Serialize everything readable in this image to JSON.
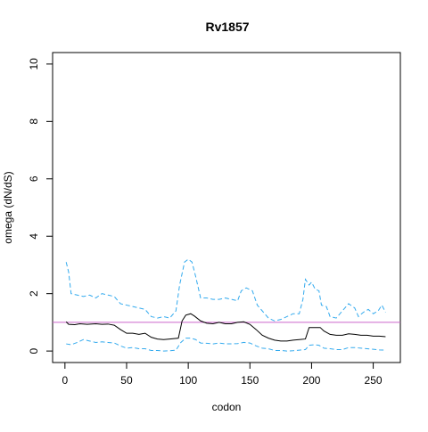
{
  "chart_data": {
    "type": "line",
    "title": "Rv1857",
    "xlabel": "codon",
    "ylabel": "omega (dN/dS)",
    "xlim": [
      -10,
      272
    ],
    "ylim": [
      -0.4,
      10.4
    ],
    "x_ticks": [
      0,
      50,
      100,
      150,
      200,
      250
    ],
    "y_ticks": [
      0,
      2,
      4,
      6,
      8,
      10
    ],
    "grid": false,
    "reference_line": {
      "y": 1,
      "color": "#cc66cc"
    },
    "series": [
      {
        "role": "estimate",
        "color": "#000000",
        "dash": "solid",
        "points": [
          [
            1,
            1.02
          ],
          [
            3,
            0.93
          ],
          [
            8,
            0.92
          ],
          [
            12,
            0.95
          ],
          [
            18,
            0.93
          ],
          [
            25,
            0.95
          ],
          [
            30,
            0.93
          ],
          [
            35,
            0.94
          ],
          [
            40,
            0.9
          ],
          [
            45,
            0.75
          ],
          [
            50,
            0.62
          ],
          [
            55,
            0.62
          ],
          [
            60,
            0.58
          ],
          [
            65,
            0.62
          ],
          [
            70,
            0.48
          ],
          [
            75,
            0.42
          ],
          [
            80,
            0.4
          ],
          [
            85,
            0.42
          ],
          [
            92,
            0.45
          ],
          [
            95,
            1.05
          ],
          [
            98,
            1.25
          ],
          [
            102,
            1.3
          ],
          [
            105,
            1.22
          ],
          [
            110,
            1.05
          ],
          [
            115,
            0.97
          ],
          [
            120,
            0.95
          ],
          [
            125,
            1.0
          ],
          [
            130,
            0.95
          ],
          [
            135,
            0.95
          ],
          [
            140,
            1.0
          ],
          [
            145,
            1.02
          ],
          [
            150,
            0.93
          ],
          [
            155,
            0.75
          ],
          [
            160,
            0.55
          ],
          [
            165,
            0.45
          ],
          [
            170,
            0.38
          ],
          [
            175,
            0.35
          ],
          [
            180,
            0.35
          ],
          [
            185,
            0.38
          ],
          [
            190,
            0.4
          ],
          [
            195,
            0.42
          ],
          [
            198,
            0.82
          ],
          [
            202,
            0.82
          ],
          [
            207,
            0.82
          ],
          [
            210,
            0.7
          ],
          [
            215,
            0.58
          ],
          [
            220,
            0.55
          ],
          [
            225,
            0.55
          ],
          [
            230,
            0.6
          ],
          [
            235,
            0.58
          ],
          [
            240,
            0.55
          ],
          [
            245,
            0.55
          ],
          [
            250,
            0.52
          ],
          [
            255,
            0.52
          ],
          [
            260,
            0.5
          ]
        ]
      },
      {
        "role": "upper",
        "color": "#33aaee",
        "dash": "dashed",
        "points": [
          [
            1,
            3.1
          ],
          [
            3,
            2.75
          ],
          [
            5,
            2.0
          ],
          [
            10,
            1.95
          ],
          [
            15,
            1.9
          ],
          [
            20,
            1.95
          ],
          [
            25,
            1.85
          ],
          [
            30,
            2.0
          ],
          [
            35,
            1.95
          ],
          [
            40,
            1.9
          ],
          [
            45,
            1.65
          ],
          [
            50,
            1.6
          ],
          [
            55,
            1.55
          ],
          [
            60,
            1.5
          ],
          [
            65,
            1.45
          ],
          [
            70,
            1.2
          ],
          [
            75,
            1.15
          ],
          [
            80,
            1.2
          ],
          [
            85,
            1.15
          ],
          [
            90,
            1.4
          ],
          [
            93,
            2.3
          ],
          [
            97,
            3.1
          ],
          [
            100,
            3.2
          ],
          [
            103,
            3.1
          ],
          [
            106,
            2.6
          ],
          [
            110,
            1.85
          ],
          [
            115,
            1.85
          ],
          [
            120,
            1.8
          ],
          [
            125,
            1.8
          ],
          [
            130,
            1.85
          ],
          [
            135,
            1.8
          ],
          [
            140,
            1.75
          ],
          [
            143,
            2.1
          ],
          [
            147,
            2.2
          ],
          [
            152,
            2.1
          ],
          [
            156,
            1.6
          ],
          [
            160,
            1.4
          ],
          [
            165,
            1.15
          ],
          [
            170,
            1.05
          ],
          [
            175,
            1.1
          ],
          [
            180,
            1.2
          ],
          [
            185,
            1.3
          ],
          [
            190,
            1.3
          ],
          [
            193,
            1.8
          ],
          [
            195,
            2.5
          ],
          [
            198,
            2.3
          ],
          [
            200,
            2.4
          ],
          [
            203,
            2.15
          ],
          [
            206,
            2.1
          ],
          [
            208,
            1.6
          ],
          [
            212,
            1.55
          ],
          [
            215,
            1.2
          ],
          [
            220,
            1.15
          ],
          [
            225,
            1.4
          ],
          [
            230,
            1.65
          ],
          [
            235,
            1.5
          ],
          [
            238,
            1.2
          ],
          [
            242,
            1.35
          ],
          [
            246,
            1.45
          ],
          [
            250,
            1.3
          ],
          [
            254,
            1.4
          ],
          [
            257,
            1.6
          ],
          [
            260,
            1.35
          ]
        ]
      },
      {
        "role": "lower",
        "color": "#33aaee",
        "dash": "dashed",
        "points": [
          [
            1,
            0.25
          ],
          [
            5,
            0.22
          ],
          [
            10,
            0.3
          ],
          [
            15,
            0.4
          ],
          [
            20,
            0.35
          ],
          [
            25,
            0.3
          ],
          [
            30,
            0.32
          ],
          [
            35,
            0.3
          ],
          [
            40,
            0.28
          ],
          [
            45,
            0.18
          ],
          [
            50,
            0.1
          ],
          [
            55,
            0.12
          ],
          [
            60,
            0.08
          ],
          [
            65,
            0.08
          ],
          [
            70,
            0.02
          ],
          [
            75,
            0.02
          ],
          [
            80,
            0.0
          ],
          [
            85,
            0.01
          ],
          [
            90,
            0.03
          ],
          [
            94,
            0.3
          ],
          [
            98,
            0.45
          ],
          [
            102,
            0.45
          ],
          [
            106,
            0.4
          ],
          [
            110,
            0.28
          ],
          [
            115,
            0.27
          ],
          [
            120,
            0.25
          ],
          [
            125,
            0.28
          ],
          [
            130,
            0.25
          ],
          [
            135,
            0.25
          ],
          [
            140,
            0.26
          ],
          [
            145,
            0.3
          ],
          [
            150,
            0.28
          ],
          [
            155,
            0.18
          ],
          [
            160,
            0.1
          ],
          [
            165,
            0.08
          ],
          [
            170,
            0.02
          ],
          [
            175,
            0.02
          ],
          [
            180,
            0.0
          ],
          [
            185,
            0.01
          ],
          [
            190,
            0.03
          ],
          [
            195,
            0.05
          ],
          [
            198,
            0.2
          ],
          [
            202,
            0.22
          ],
          [
            206,
            0.2
          ],
          [
            210,
            0.1
          ],
          [
            215,
            0.08
          ],
          [
            220,
            0.05
          ],
          [
            225,
            0.05
          ],
          [
            230,
            0.12
          ],
          [
            235,
            0.12
          ],
          [
            240,
            0.1
          ],
          [
            245,
            0.08
          ],
          [
            250,
            0.06
          ],
          [
            255,
            0.04
          ],
          [
            260,
            0.03
          ]
        ]
      }
    ]
  }
}
